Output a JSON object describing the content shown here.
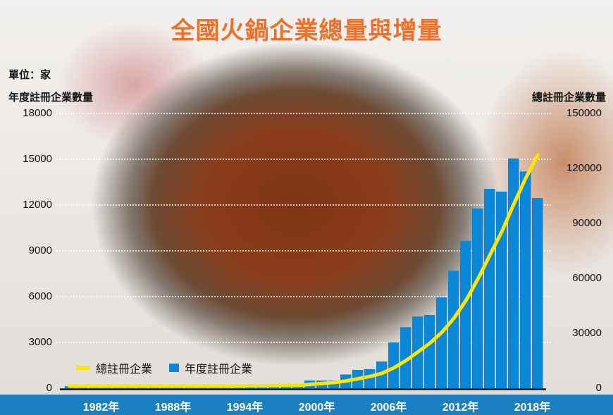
{
  "chart_data": {
    "type": "bar+line",
    "title": "全國火鍋企業總量與增量",
    "unit_label": "單位：家",
    "ylabel_left": "年度註冊企業數量",
    "ylabel_right": "總註冊企業數量",
    "ylim_left": [
      0,
      18000
    ],
    "ylim_right": [
      0,
      150000
    ],
    "yticks_left": [
      "0",
      "3000",
      "6000",
      "9000",
      "12000",
      "15000",
      "18000"
    ],
    "yticks_right": [
      "0",
      "30000",
      "60000",
      "90000",
      "120000",
      "150000"
    ],
    "xtick_labels": [
      "1982年",
      "1988年",
      "1994年",
      "2000年",
      "2006年",
      "2012年",
      "2018年"
    ],
    "grid": true,
    "legend_position": "bottom-left",
    "x": [
      1980,
      1981,
      1982,
      1983,
      1984,
      1985,
      1986,
      1987,
      1988,
      1989,
      1990,
      1991,
      1992,
      1993,
      1994,
      1995,
      1996,
      1997,
      1998,
      1999,
      2000,
      2001,
      2002,
      2003,
      2004,
      2005,
      2006,
      2007,
      2008,
      2009,
      2010,
      2011,
      2012,
      2013,
      2014,
      2015,
      2016,
      2017,
      2018,
      2019
    ],
    "series": [
      {
        "name": "年度註冊企業",
        "type": "bar",
        "axis": "left",
        "color": "#0a87d6",
        "values": [
          80,
          80,
          80,
          80,
          80,
          80,
          80,
          80,
          80,
          80,
          80,
          80,
          80,
          80,
          80,
          80,
          80,
          80,
          80,
          80,
          500,
          500,
          500,
          900,
          1200,
          1250,
          1750,
          3000,
          4000,
          4700,
          4800,
          5950,
          7700,
          9650,
          11770,
          13060,
          12880,
          15050,
          14200,
          12460
        ]
      },
      {
        "name": "總註冊企業",
        "type": "line",
        "axis": "right",
        "color": "#ffe600",
        "values": [
          80,
          160,
          240,
          320,
          400,
          480,
          560,
          640,
          720,
          800,
          880,
          960,
          1040,
          1120,
          1200,
          1280,
          1360,
          1440,
          1520,
          1600,
          2100,
          2600,
          3100,
          4000,
          5200,
          6450,
          8200,
          11200,
          15200,
          19900,
          24700,
          30650,
          38350,
          48000,
          59770,
          72830,
          85710,
          100760,
          114960,
          127420
        ]
      }
    ]
  }
}
